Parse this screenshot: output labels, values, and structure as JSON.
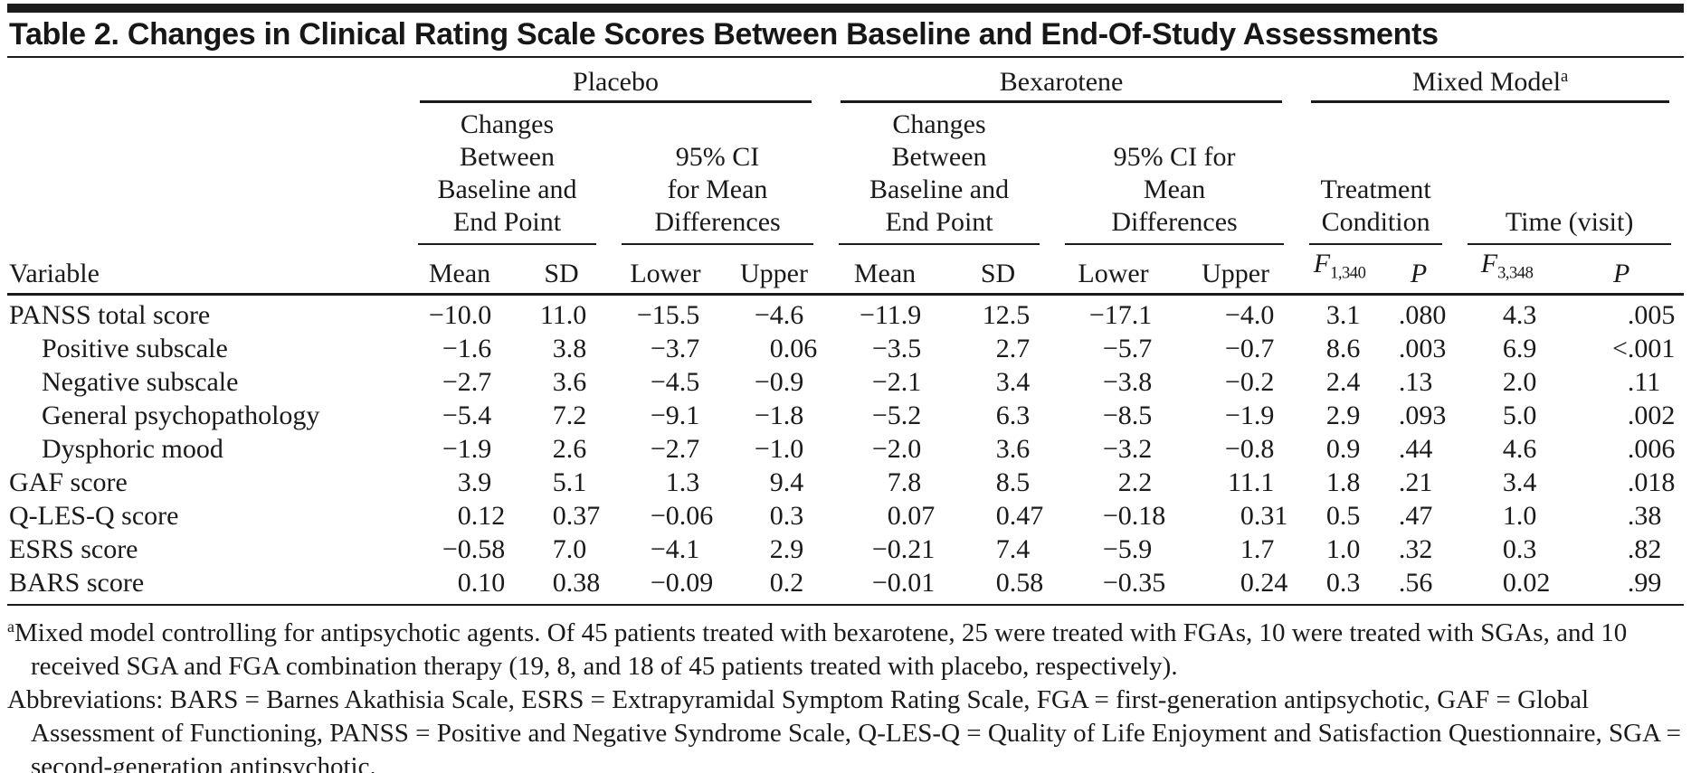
{
  "title": "Table 2. Changes in Clinical Rating Scale Scores Between Baseline and End-Of-Study Assessments",
  "groups": {
    "placebo": "Placebo",
    "bexarotene": "Bexarotene",
    "mixed_model": "Mixed Model",
    "mixed_model_sup": "a"
  },
  "subgroups": {
    "placebo_changes": "Changes\nBetween\nBaseline and\nEnd Point",
    "placebo_ci": "95% CI\nfor Mean\nDifferences",
    "bexarotene_changes": "Changes\nBetween\nBaseline and\nEnd Point",
    "bexarotene_ci": "95% CI for\nMean\nDifferences",
    "treatment_condition": "Treatment\nCondition",
    "time_visit": "Time (visit)"
  },
  "column_headers": {
    "variable": "Variable",
    "placebo_mean": "Mean",
    "placebo_sd": "SD",
    "placebo_lower": "Lower",
    "placebo_upper": "Upper",
    "bexarotene_mean": "Mean",
    "bexarotene_sd": "SD",
    "bexarotene_lower": "Lower",
    "bexarotene_upper": "Upper",
    "f_treatment": "F",
    "f_treatment_sub": "1,340",
    "p_treatment": "P",
    "f_time": "F",
    "f_time_sub": "3,348",
    "p_time": "P"
  },
  "table": {
    "rows": [
      {
        "label": "PANSS total score",
        "indent": false,
        "values": [
          "−10.0",
          "11.0",
          "−15.5",
          "−4.6",
          "−11.9",
          "12.5",
          "−17.1",
          "−4.0",
          "3.1",
          ".080",
          "4.3",
          ".005"
        ]
      },
      {
        "label": "Positive subscale",
        "indent": true,
        "values": [
          "−1.6",
          "3.8",
          "−3.7",
          "0.06",
          "−3.5",
          "2.7",
          "−5.7",
          "−0.7",
          "8.6",
          ".003",
          "6.9",
          "<.001"
        ]
      },
      {
        "label": "Negative subscale",
        "indent": true,
        "values": [
          "−2.7",
          "3.6",
          "−4.5",
          "−0.9",
          "−2.1",
          "3.4",
          "−3.8",
          "−0.2",
          "2.4",
          ".13",
          "2.0",
          ".11"
        ]
      },
      {
        "label": "General psychopathology",
        "indent": true,
        "values": [
          "−5.4",
          "7.2",
          "−9.1",
          "−1.8",
          "−5.2",
          "6.3",
          "−8.5",
          "−1.9",
          "2.9",
          ".093",
          "5.0",
          ".002"
        ]
      },
      {
        "label": "Dysphoric mood",
        "indent": true,
        "values": [
          "−1.9",
          "2.6",
          "−2.7",
          "−1.0",
          "−2.0",
          "3.6",
          "−3.2",
          "−0.8",
          "0.9",
          ".44",
          "4.6",
          ".006"
        ]
      },
      {
        "label": "GAF score",
        "indent": false,
        "values": [
          "3.9",
          "5.1",
          "1.3",
          "9.4",
          "7.8",
          "8.5",
          "2.2",
          "11.1",
          "1.8",
          ".21",
          "3.4",
          ".018"
        ]
      },
      {
        "label": "Q-LES-Q score",
        "indent": false,
        "values": [
          "0.12",
          "0.37",
          "−0.06",
          "0.3",
          "0.07",
          "0.47",
          "−0.18",
          "0.31",
          "0.5",
          ".47",
          "1.0",
          ".38"
        ]
      },
      {
        "label": "ESRS score",
        "indent": false,
        "values": [
          "−0.58",
          "7.0",
          "−4.1",
          "2.9",
          "−0.21",
          "7.4",
          "−5.9",
          "1.7",
          "1.0",
          ".32",
          "0.3",
          ".82"
        ]
      },
      {
        "label": "BARS score",
        "indent": false,
        "values": [
          "0.10",
          "0.38",
          "−0.09",
          "0.2",
          "−0.01",
          "0.58",
          "−0.35",
          "0.24",
          "0.3",
          ".56",
          "0.02",
          ".99"
        ]
      }
    ]
  },
  "footnotes": {
    "a_sup": "a",
    "a_text": "Mixed model controlling for antipsychotic agents. Of 45 patients treated with bexarotene, 25 were treated with FGAs, 10 were treated with SGAs, and 10 received SGA and FGA combination therapy (19, 8, and 18 of 45 patients treated with placebo, respectively).",
    "abbreviations": "Abbreviations: BARS = Barnes Akathisia Scale, ESRS = Extrapyramidal Symptom Rating Scale, FGA = first-generation antipsychotic, GAF = Global Assessment of Functioning, PANSS = Positive and Negative Syndrome Scale, Q-LES-Q = Quality of Life Enjoyment and Satisfaction Questionnaire, SGA = second-generation antipsychotic."
  },
  "colors": {
    "text": "#1a1a1a",
    "rule": "#1a1a1a",
    "background": "#ffffff"
  }
}
